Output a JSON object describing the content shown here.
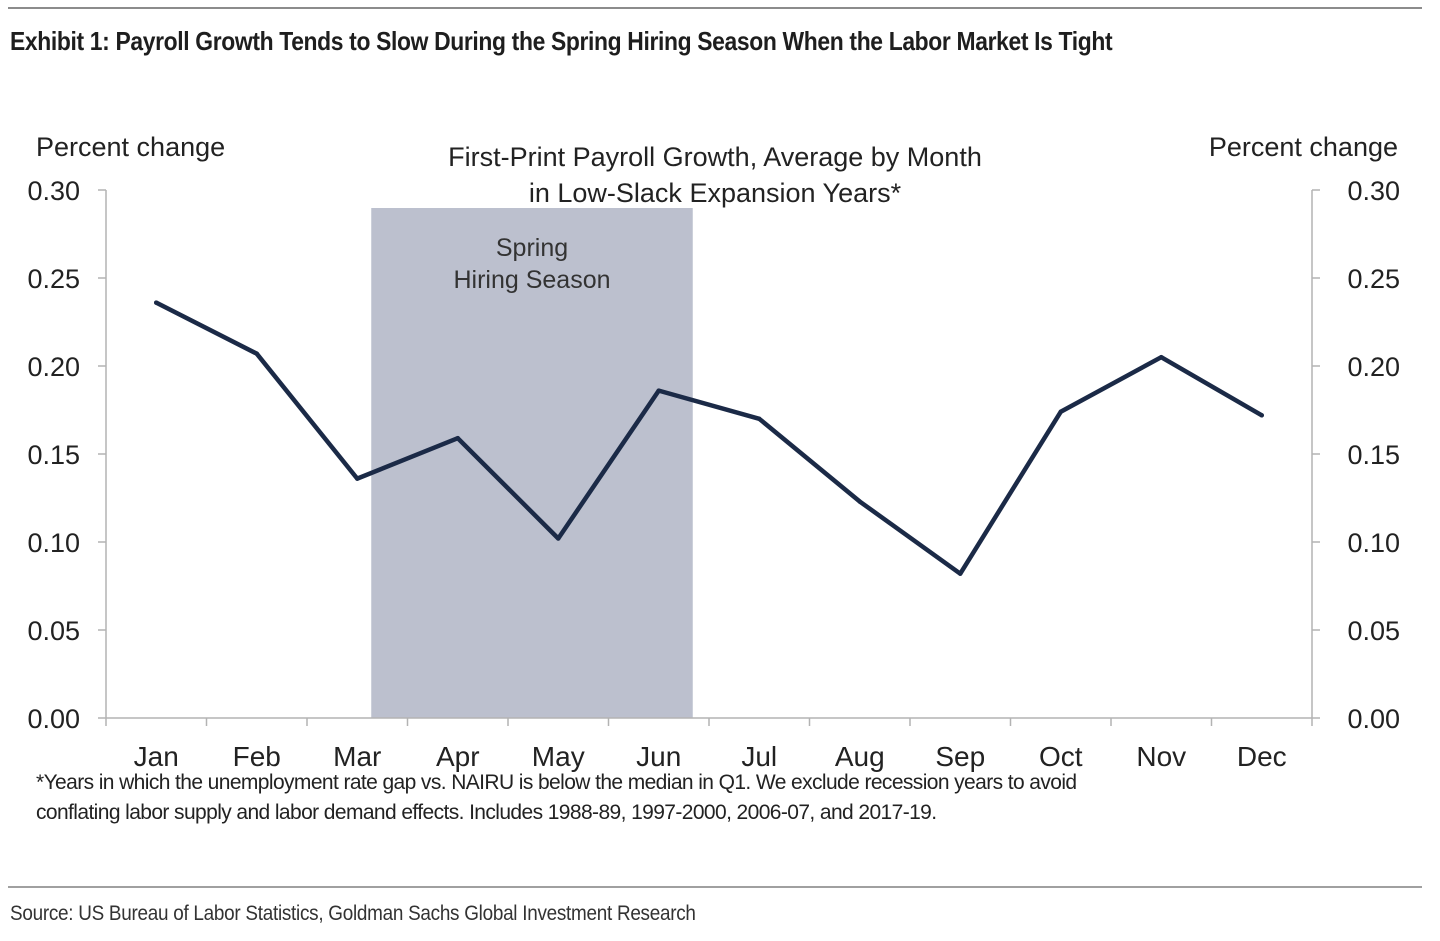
{
  "exhibit_title": "Exhibit 1: Payroll Growth Tends to Slow During the Spring Hiring Season When the Labor Market Is Tight",
  "source": "Source: US Bureau of Labor Statistics, Goldman Sachs Global Investment Research",
  "footnote": {
    "line1": "*Years in which the unemployment rate gap vs. NAIRU is below the median in Q1. We exclude recession years to avoid",
    "line2": "conflating labor supply and labor demand effects. Includes 1988-89, 1997-2000, 2006-07, and 2017-19."
  },
  "chart_data": {
    "type": "line",
    "title_line1": "First-Print Payroll Growth, Average by Month",
    "title_line2": "in Low-Slack Expansion Years*",
    "ylabel_left": "Percent change",
    "ylabel_right": "Percent change",
    "ylim": [
      0,
      0.3
    ],
    "yticks": [
      "0.00",
      "0.05",
      "0.10",
      "0.15",
      "0.20",
      "0.25",
      "0.30"
    ],
    "categories": [
      "Jan",
      "Feb",
      "Mar",
      "Apr",
      "May",
      "Jun",
      "Jul",
      "Aug",
      "Sep",
      "Oct",
      "Nov",
      "Dec"
    ],
    "values": [
      0.236,
      0.207,
      0.136,
      0.159,
      0.102,
      0.186,
      0.17,
      0.123,
      0.082,
      0.174,
      0.205,
      0.172
    ],
    "series_color": "#1b2a47",
    "shaded_region": {
      "label_line1": "Spring",
      "label_line2": "Hiring Season",
      "start": "Mar",
      "end": "Jun",
      "color": "#bcc0ce"
    },
    "grid": false,
    "legend": "none"
  }
}
